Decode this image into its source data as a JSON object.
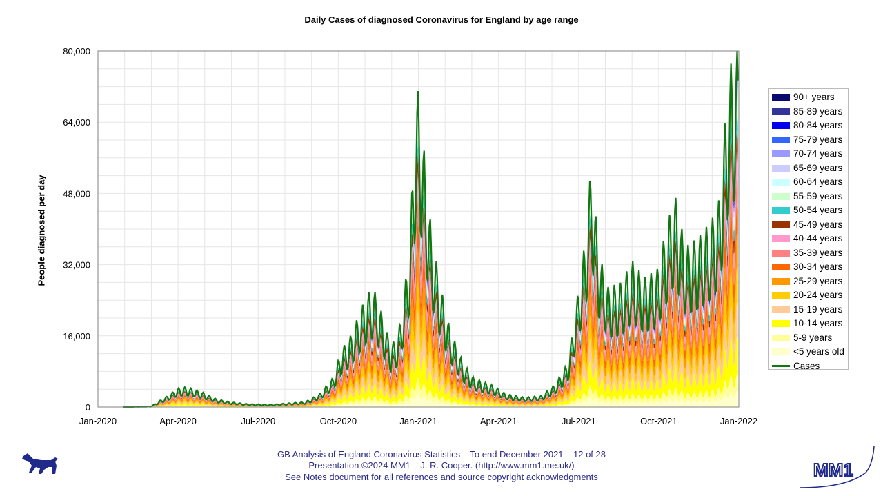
{
  "title": "Daily Cases of diagnosed Coronavirus for England by age range",
  "ylabel": "People diagnosed per day",
  "footer": {
    "line1": "GB Analysis of England Coronavirus Statistics – To end December 2021 – 12 of 28",
    "line2": "Presentation ©2024 MM1 – J. R. Cooper. (http://www.mm1.me.uk/)",
    "line3": "See Notes document for all references and source copyright acknowledgments"
  },
  "logo_text": "MM1",
  "chart_data": {
    "type": "area",
    "stacked": true,
    "title": "Daily Cases of diagnosed Coronavirus for England by age range",
    "xlabel": "",
    "ylabel": "People diagnosed per day",
    "x_ticks": [
      "Jan-2020",
      "Apr-2020",
      "Jul-2020",
      "Oct-2020",
      "Jan-2021",
      "Apr-2021",
      "Jul-2021",
      "Oct-2021",
      "Jan-2022"
    ],
    "y_ticks": [
      "0",
      "16,000",
      "32,000",
      "48,000",
      "64,000",
      "80,000"
    ],
    "ylim": [
      0,
      80000
    ],
    "xlim": [
      "2020-01-01",
      "2022-01-01"
    ],
    "grid": true,
    "legend_position": "right",
    "cases_line": {
      "name": "Cases",
      "color": "#117711",
      "points": [
        [
          "2020-01-30",
          0
        ],
        [
          "2020-03-01",
          100
        ],
        [
          "2020-03-20",
          2500
        ],
        [
          "2020-04-01",
          4200
        ],
        [
          "2020-04-10",
          4500
        ],
        [
          "2020-04-20",
          4000
        ],
        [
          "2020-05-01",
          3200
        ],
        [
          "2020-05-15",
          1800
        ],
        [
          "2020-06-01",
          1100
        ],
        [
          "2020-06-20",
          700
        ],
        [
          "2020-07-15",
          550
        ],
        [
          "2020-08-01",
          800
        ],
        [
          "2020-08-25",
          1200
        ],
        [
          "2020-09-10",
          3000
        ],
        [
          "2020-09-25",
          6500
        ],
        [
          "2020-10-05",
          13000
        ],
        [
          "2020-10-15",
          16000
        ],
        [
          "2020-10-25",
          21000
        ],
        [
          "2020-11-02",
          25000
        ],
        [
          "2020-11-10",
          27000
        ],
        [
          "2020-11-20",
          21000
        ],
        [
          "2020-11-30",
          14000
        ],
        [
          "2020-12-08",
          16000
        ],
        [
          "2020-12-15",
          25000
        ],
        [
          "2020-12-22",
          38000
        ],
        [
          "2020-12-29",
          73000
        ],
        [
          "2021-01-03",
          68000
        ],
        [
          "2021-01-08",
          55000
        ],
        [
          "2021-01-15",
          40000
        ],
        [
          "2021-01-25",
          28000
        ],
        [
          "2021-02-05",
          18000
        ],
        [
          "2021-02-20",
          10000
        ],
        [
          "2021-03-05",
          6500
        ],
        [
          "2021-03-25",
          5000
        ],
        [
          "2021-04-10",
          3000
        ],
        [
          "2021-05-01",
          2200
        ],
        [
          "2021-05-20",
          2500
        ],
        [
          "2021-06-05",
          5000
        ],
        [
          "2021-06-20",
          10000
        ],
        [
          "2021-07-01",
          25000
        ],
        [
          "2021-07-10",
          38000
        ],
        [
          "2021-07-17",
          56000
        ],
        [
          "2021-07-25",
          35000
        ],
        [
          "2021-08-05",
          27000
        ],
        [
          "2021-08-20",
          28000
        ],
        [
          "2021-09-01",
          33000
        ],
        [
          "2021-09-15",
          29000
        ],
        [
          "2021-09-30",
          31000
        ],
        [
          "2021-10-10",
          40000
        ],
        [
          "2021-10-20",
          48000
        ],
        [
          "2021-11-01",
          36000
        ],
        [
          "2021-11-15",
          38000
        ],
        [
          "2021-12-01",
          42000
        ],
        [
          "2021-12-10",
          47000
        ],
        [
          "2021-12-20",
          75000
        ],
        [
          "2021-12-27",
          80000
        ],
        [
          "2021-12-31",
          80000
        ]
      ]
    },
    "series": [
      {
        "name": "90+ years",
        "color": "#0a0a6e"
      },
      {
        "name": "85-89 years",
        "color": "#333399"
      },
      {
        "name": "80-84 years",
        "color": "#0000ee"
      },
      {
        "name": "75-79 years",
        "color": "#3366ff"
      },
      {
        "name": "70-74 years",
        "color": "#9999ff"
      },
      {
        "name": "65-69 years",
        "color": "#ccccff"
      },
      {
        "name": "60-64 years",
        "color": "#ccffff"
      },
      {
        "name": "55-59 years",
        "color": "#ccffcc"
      },
      {
        "name": "50-54 years",
        "color": "#33cccc"
      },
      {
        "name": "45-49 years",
        "color": "#993300"
      },
      {
        "name": "40-44 years",
        "color": "#ff99cc"
      },
      {
        "name": "35-39 years",
        "color": "#ff8080"
      },
      {
        "name": "30-34 years",
        "color": "#ff6600"
      },
      {
        "name": "25-29 years",
        "color": "#ff9900"
      },
      {
        "name": "20-24 years",
        "color": "#ffcc00"
      },
      {
        "name": "15-19 years",
        "color": "#ffcc99"
      },
      {
        "name": "10-14 years",
        "color": "#ffff00"
      },
      {
        "name": "5-9 years",
        "color": "#ffff99"
      },
      {
        "name": "<5 years old",
        "color": "#ffffcc"
      }
    ]
  }
}
